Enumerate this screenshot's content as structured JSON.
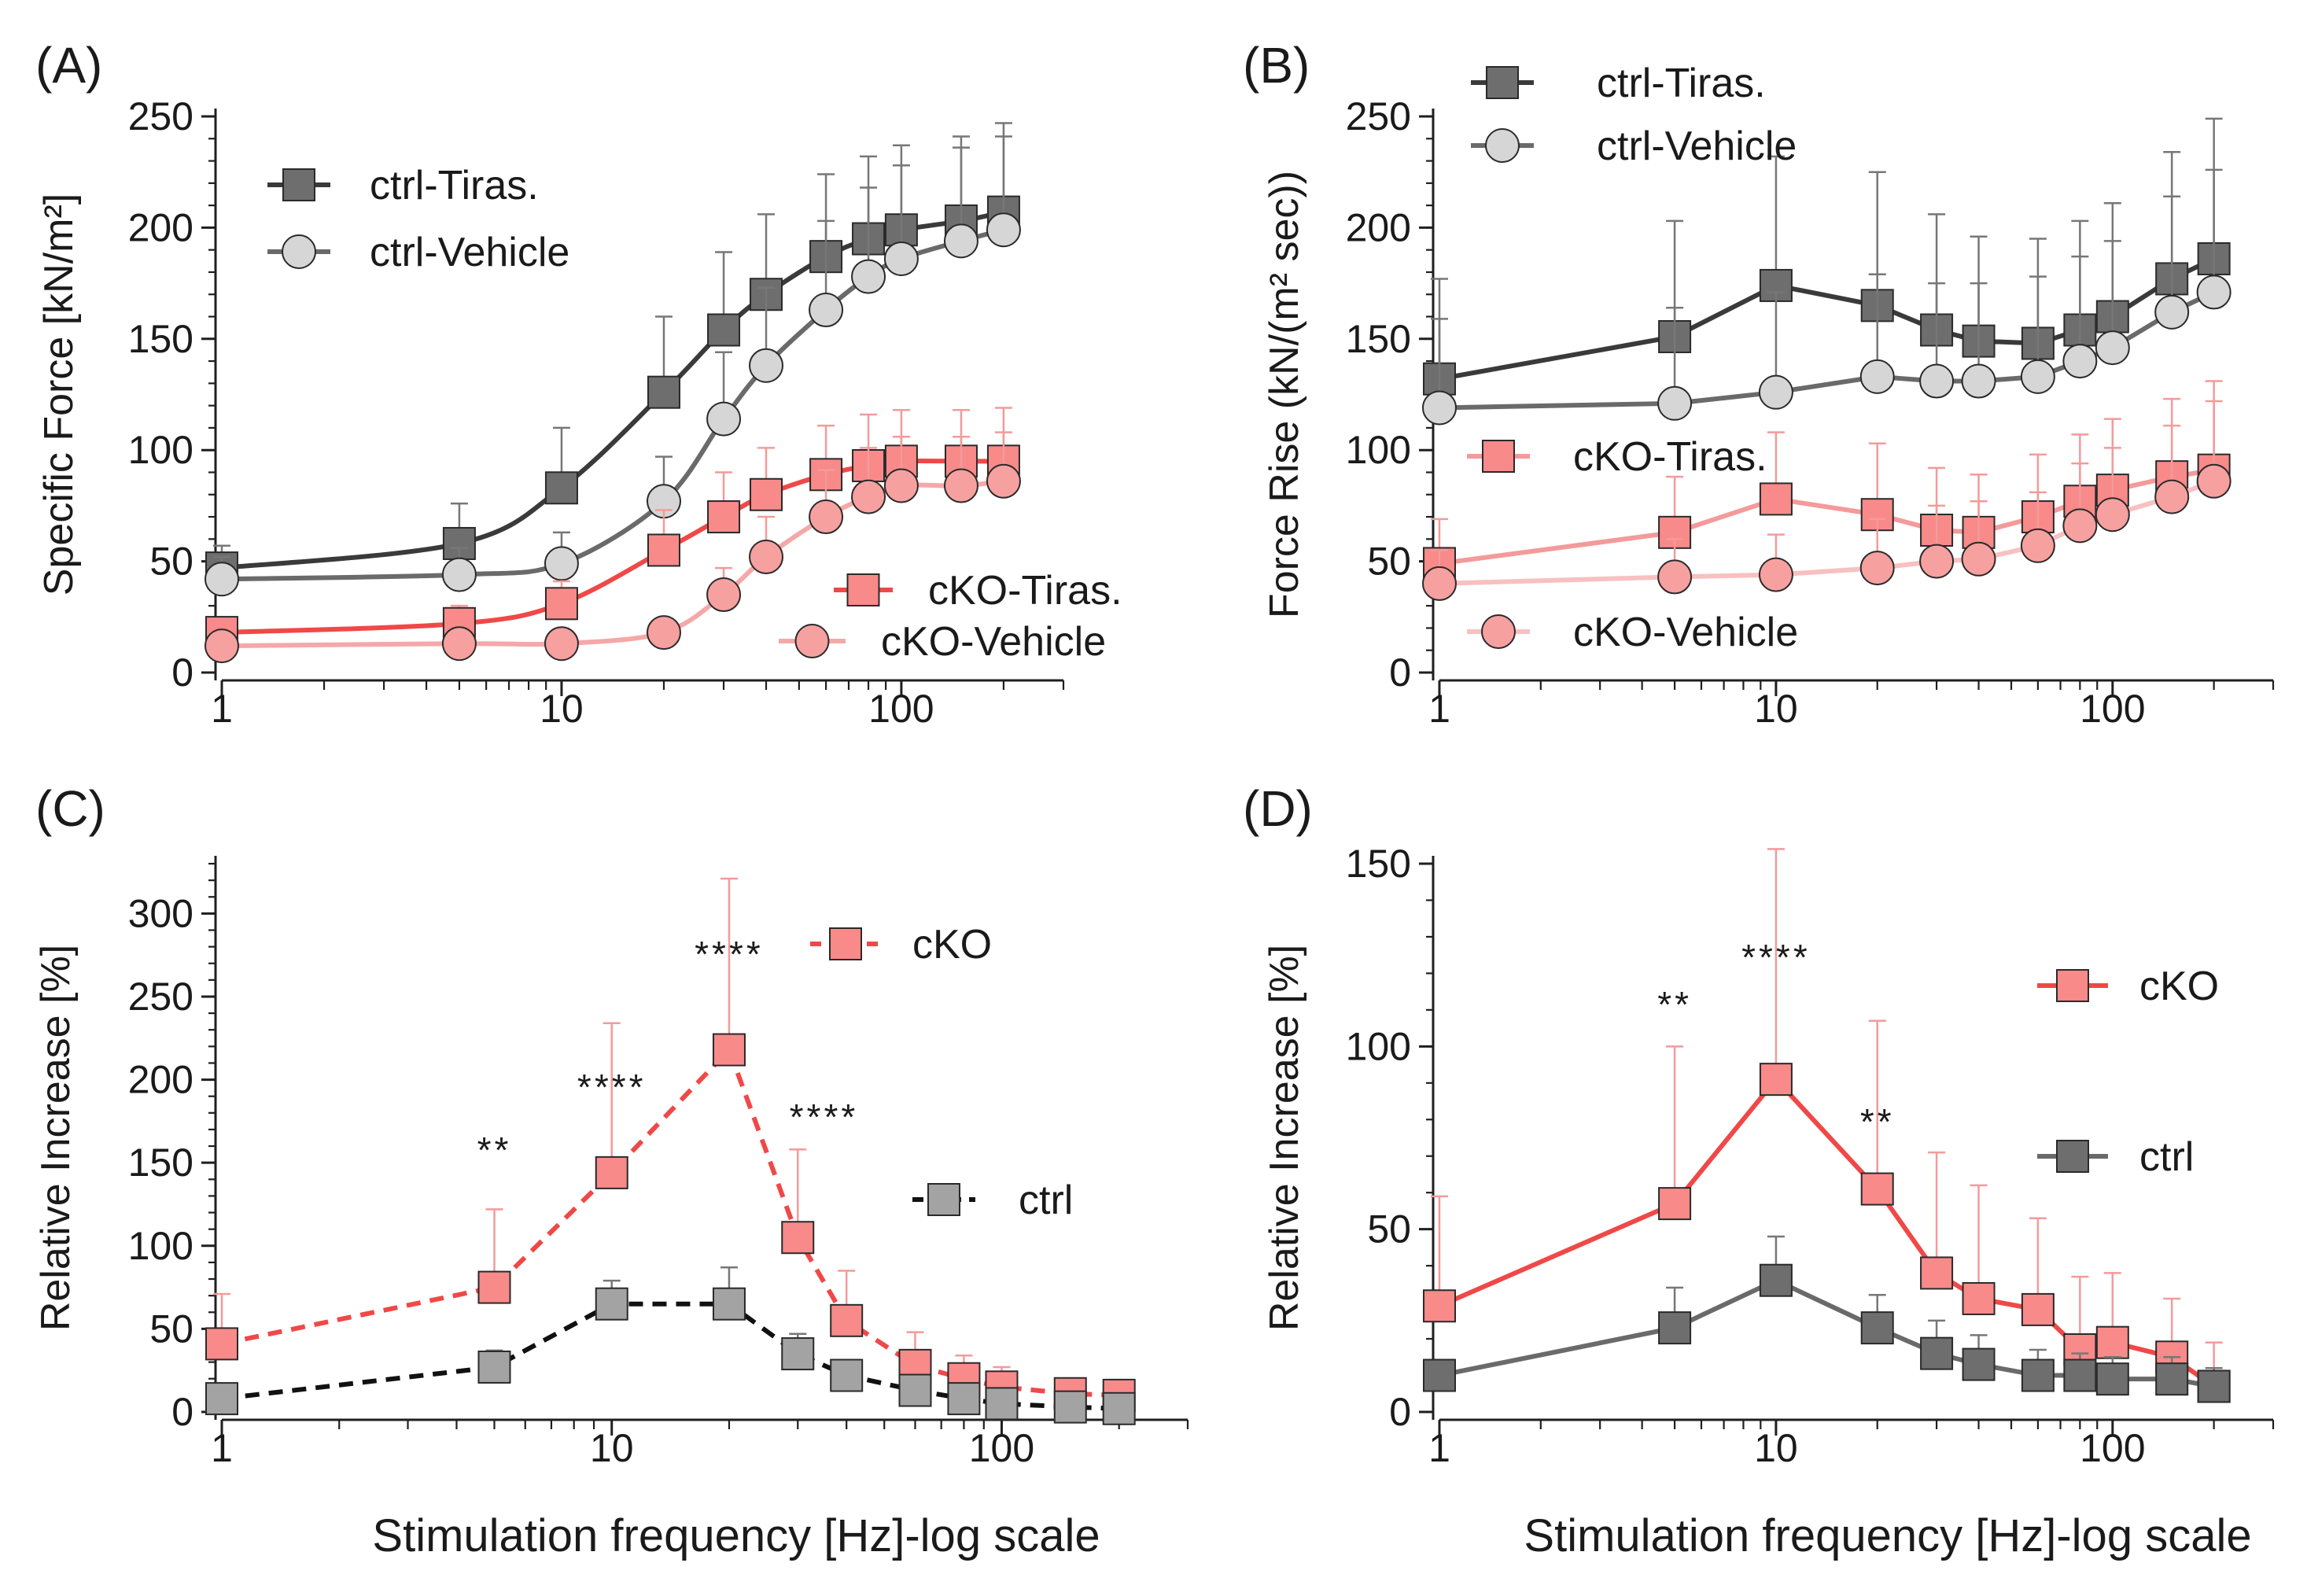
{
  "figure": {
    "x_axis_title": "Stimulation frequency [Hz]-log scale"
  },
  "colors": {
    "ctrl_tiras_line": "#3a3a3a",
    "ctrl_tiras_marker": "#6e6e6e",
    "ctrl_vehicle_line": "#6a6a6a",
    "ctrl_vehicle_marker": "#d6d6d6",
    "cko_tiras_line": "#f04848",
    "cko_tiras_marker": "#f88a8a",
    "cko_vehicle_line": "#f5a8a8",
    "cko_vehicle_marker": "#f7a0a0",
    "ctrl_marker": "#8c8c8c",
    "ctrl_marker_c": "#a3a3a3",
    "error_ctrl": "#777777",
    "error_cko": "#f49a9a"
  },
  "chart_data": [
    {
      "id": "A",
      "panel_label": "(A)",
      "type": "line",
      "ylabel": "Specific Force [kN/m²]",
      "xscale": "log",
      "xlim": [
        1,
        300
      ],
      "ylim": [
        0,
        250
      ],
      "xticks": [
        1,
        10,
        100
      ],
      "xtick_labels": [
        "1",
        "10",
        "100"
      ],
      "yticks": [
        0,
        50,
        100,
        150,
        200,
        250
      ],
      "ytick_labels": [
        "0",
        "50",
        "100",
        "150",
        "200",
        "250"
      ],
      "x": [
        1,
        5,
        10,
        20,
        30,
        40,
        60,
        80,
        100,
        150,
        200
      ],
      "series": [
        {
          "name": "ctrl-Tiras.",
          "marker": "square",
          "line": "solid",
          "line_color": "#3a3a3a",
          "marker_color": "#6e6e6e",
          "error_color": "#777777",
          "values": [
            47,
            58,
            83,
            126,
            154,
            170,
            187,
            195,
            199,
            203,
            207
          ],
          "errors": [
            10,
            18,
            27,
            34,
            35,
            36,
            37,
            37,
            38,
            38,
            40
          ]
        },
        {
          "name": "ctrl-Vehicle",
          "marker": "circle",
          "line": "solid",
          "line_color": "#6a6a6a",
          "marker_color": "#d6d6d6",
          "error_color": "#777777",
          "values": [
            42,
            44,
            49,
            77,
            114,
            138,
            163,
            178,
            186,
            194,
            199
          ],
          "errors": [
            10,
            12,
            14,
            20,
            30,
            35,
            40,
            40,
            42,
            42,
            42
          ]
        },
        {
          "name": "cKO-Tiras.",
          "marker": "square",
          "line": "solid",
          "line_color": "#f04848",
          "marker_color": "#f88a8a",
          "error_color": "#f49a9a",
          "values": [
            18,
            22,
            31,
            55,
            70,
            80,
            89,
            93,
            95,
            95,
            95
          ],
          "errors": [
            6,
            8,
            10,
            18,
            20,
            21,
            22,
            23,
            23,
            23,
            24
          ]
        },
        {
          "name": "cKO-Vehicle",
          "marker": "circle",
          "line": "solid",
          "line_color": "#f5a8a8",
          "marker_color": "#f7a0a0",
          "error_color": "#f49a9a",
          "values": [
            12,
            13,
            13,
            18,
            35,
            52,
            70,
            79,
            84,
            84,
            86
          ],
          "errors": [
            3,
            3,
            3,
            5,
            12,
            18,
            21,
            22,
            22,
            22,
            22
          ]
        }
      ],
      "legend": [
        {
          "series": 0,
          "label": "ctrl-Tiras.",
          "position": "top-left"
        },
        {
          "series": 1,
          "label": "ctrl-Vehicle",
          "position": "top-left"
        },
        {
          "series": 2,
          "label": "cKO-Tiras.",
          "position": "bottom-right"
        },
        {
          "series": 3,
          "label": "cKO-Vehicle",
          "position": "bottom-right"
        }
      ],
      "annotations": []
    },
    {
      "id": "B",
      "panel_label": "(B)",
      "type": "line",
      "ylabel": "Force Rise (kN/(m² sec))",
      "xscale": "log",
      "xlim": [
        1,
        300
      ],
      "ylim": [
        0,
        250
      ],
      "xticks": [
        1,
        10,
        100
      ],
      "xtick_labels": [
        "1",
        "10",
        "100"
      ],
      "yticks": [
        0,
        50,
        100,
        150,
        200,
        250
      ],
      "ytick_labels": [
        "0",
        "50",
        "100",
        "150",
        "200",
        "250"
      ],
      "x": [
        1,
        5,
        10,
        20,
        30,
        40,
        60,
        80,
        100,
        150,
        200
      ],
      "series": [
        {
          "name": "ctrl-Tiras.",
          "marker": "square",
          "line": "solid",
          "line_color": "#3a3a3a",
          "marker_color": "#6e6e6e",
          "error_color": "#777777",
          "values": [
            132,
            151,
            174,
            165,
            154,
            149,
            148,
            154,
            160,
            177,
            186
          ],
          "errors": [
            45,
            52,
            58,
            60,
            52,
            47,
            47,
            49,
            51,
            57,
            63
          ]
        },
        {
          "name": "ctrl-Vehicle",
          "marker": "circle",
          "line": "solid",
          "line_color": "#6a6a6a",
          "marker_color": "#d6d6d6",
          "error_color": "#777777",
          "values": [
            119,
            121,
            126,
            133,
            131,
            131,
            133,
            140,
            146,
            162,
            171
          ],
          "errors": [
            40,
            43,
            45,
            46,
            44,
            44,
            45,
            47,
            48,
            52,
            55
          ]
        },
        {
          "name": "cKO-Tiras.",
          "marker": "square",
          "line": "solid",
          "line_color": "#f49a9a",
          "marker_color": "#f88a8a",
          "error_color": "#f49a9a",
          "values": [
            49,
            63,
            78,
            71,
            64,
            63,
            70,
            77,
            82,
            88,
            91
          ],
          "errors": [
            20,
            25,
            30,
            32,
            28,
            26,
            28,
            30,
            32,
            35,
            40
          ]
        },
        {
          "name": "cKO-Vehicle",
          "marker": "circle",
          "line": "solid",
          "line_color": "#f8c0c0",
          "marker_color": "#f7a0a0",
          "error_color": "#f49a9a",
          "values": [
            40,
            43,
            44,
            47,
            50,
            51,
            57,
            66,
            71,
            79,
            86
          ],
          "errors": [
            15,
            17,
            18,
            22,
            25,
            26,
            24,
            28,
            30,
            32,
            36
          ]
        }
      ],
      "legend": [
        {
          "series": 0,
          "label": "ctrl-Tiras.",
          "position": "top"
        },
        {
          "series": 1,
          "label": "ctrl-Vehicle",
          "position": "top"
        },
        {
          "series": 2,
          "label": "cKO-Tiras.",
          "position": "middle-left"
        },
        {
          "series": 3,
          "label": "cKO-Vehicle",
          "position": "bottom-left"
        }
      ],
      "annotations": []
    },
    {
      "id": "C",
      "panel_label": "(C)",
      "type": "line",
      "ylabel": "Relative Increase [%]",
      "xlabel": "Stimulation frequency [Hz]-log scale",
      "xscale": "log",
      "xlim": [
        1,
        300
      ],
      "ylim": [
        0,
        330
      ],
      "xticks": [
        1,
        10,
        100
      ],
      "xtick_labels": [
        "1",
        "10",
        "100"
      ],
      "yticks": [
        0,
        50,
        100,
        150,
        200,
        250,
        300
      ],
      "ytick_labels": [
        "0",
        "50",
        "100",
        "150",
        "200",
        "250",
        "300"
      ],
      "x": [
        1,
        5,
        10,
        20,
        30,
        40,
        60,
        80,
        100,
        150,
        200
      ],
      "series": [
        {
          "name": "cKO",
          "marker": "square",
          "line": "dashed",
          "line_color": "#f04848",
          "marker_color": "#f88a8a",
          "error_color": "#f49a9a",
          "values": [
            41,
            75,
            144,
            218,
            105,
            55,
            28,
            20,
            15,
            11,
            10
          ],
          "errors": [
            30,
            47,
            90,
            103,
            53,
            30,
            20,
            14,
            12,
            9,
            8
          ]
        },
        {
          "name": "ctrl",
          "marker": "square",
          "line": "dashed",
          "line_color": "#111111",
          "marker_color": "#a3a3a3",
          "error_color": "#777777",
          "values": [
            8,
            27,
            65,
            65,
            35,
            22,
            13,
            8,
            5,
            3,
            2
          ],
          "errors": [
            5,
            10,
            14,
            22,
            12,
            8,
            6,
            5,
            4,
            3,
            2
          ]
        }
      ],
      "legend": [
        {
          "series": 0,
          "label": "cKO",
          "position": "top-right"
        },
        {
          "series": 1,
          "label": "ctrl",
          "position": "middle-right"
        }
      ],
      "annotations": [
        {
          "text": "**",
          "x": 5,
          "y": 150
        },
        {
          "text": "****",
          "x": 10,
          "y": 188
        },
        {
          "text": "****",
          "x": 20,
          "y": 268
        },
        {
          "text": "****",
          "x": 35,
          "y": 170
        }
      ]
    },
    {
      "id": "D",
      "panel_label": "(D)",
      "type": "line",
      "ylabel": "Relative Increase [%]",
      "xlabel": "Stimulation frequency [Hz]-log scale",
      "xscale": "log",
      "xlim": [
        1,
        300
      ],
      "ylim": [
        0,
        150
      ],
      "xticks": [
        1,
        10,
        100
      ],
      "xtick_labels": [
        "1",
        "10",
        "100"
      ],
      "yticks": [
        0,
        50,
        100,
        150
      ],
      "ytick_labels": [
        "0",
        "50",
        "100",
        "150"
      ],
      "x": [
        1,
        5,
        10,
        20,
        30,
        40,
        60,
        80,
        100,
        150,
        200
      ],
      "series": [
        {
          "name": "cKO",
          "marker": "square",
          "line": "solid",
          "line_color": "#f04848",
          "marker_color": "#f88a8a",
          "error_color": "#f49a9a",
          "values": [
            29,
            57,
            91,
            61,
            38,
            31,
            28,
            17,
            19,
            15,
            7
          ],
          "errors": [
            30,
            43,
            63,
            46,
            33,
            31,
            25,
            20,
            19,
            16,
            12
          ]
        },
        {
          "name": "ctrl",
          "marker": "square",
          "line": "solid",
          "line_color": "#6a6a6a",
          "marker_color": "#6e6e6e",
          "error_color": "#777777",
          "values": [
            10,
            23,
            36,
            23,
            16,
            13,
            10,
            10,
            9,
            9,
            7
          ],
          "errors": [
            4,
            11,
            12,
            9,
            9,
            8,
            7,
            6,
            6,
            6,
            5
          ]
        }
      ],
      "legend": [
        {
          "series": 0,
          "label": "cKO",
          "position": "top-right"
        },
        {
          "series": 1,
          "label": "ctrl",
          "position": "middle-right"
        }
      ],
      "annotations": [
        {
          "text": "**",
          "x": 5,
          "y": 108
        },
        {
          "text": "****",
          "x": 10,
          "y": 121
        },
        {
          "text": "**",
          "x": 20,
          "y": 76
        }
      ]
    }
  ]
}
